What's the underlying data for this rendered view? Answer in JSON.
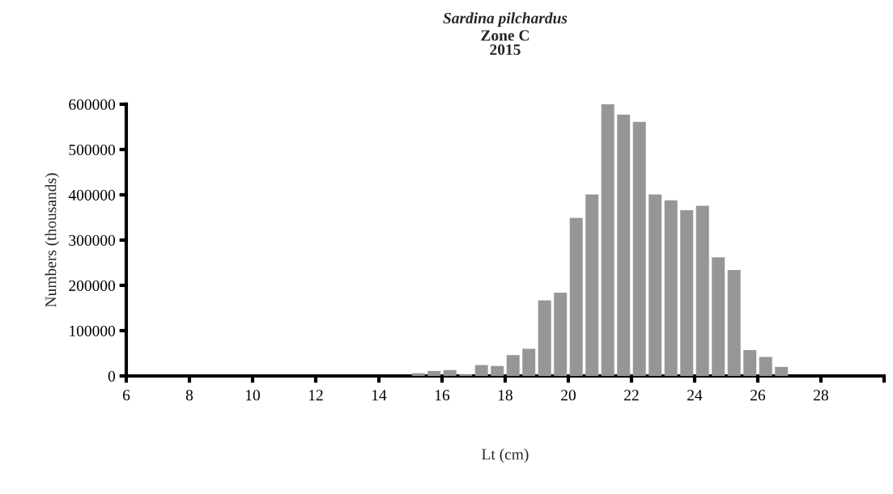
{
  "chart_data": {
    "type": "histogram",
    "title": "Sardina pilchardus",
    "subtitle": "Zone C\n2015",
    "xlabel": "Lt (cm)",
    "ylabel": "Numbers (thousands)",
    "color": "#969696",
    "bins": [
      6,
      6.5,
      7,
      7.5,
      8,
      8.5,
      9,
      9.5,
      10,
      10.5,
      11,
      11.5,
      12,
      12.5,
      13,
      13.5,
      14,
      14.5,
      15,
      15.5,
      16,
      16.5,
      17,
      17.5,
      18,
      18.5,
      19,
      19.5,
      20,
      20.5,
      21,
      21.5,
      22,
      22.5,
      23,
      23.5,
      24,
      24.5,
      25,
      25.5,
      26,
      26.5,
      27,
      27.5,
      28,
      28.5,
      29,
      29.5,
      30
    ],
    "values": [
      0,
      0,
      0,
      0,
      0,
      0,
      0,
      0,
      0,
      0,
      0,
      0,
      0,
      0,
      0,
      0,
      0,
      0,
      6000,
      11000,
      13000,
      4000,
      24000,
      22000,
      46000,
      60000,
      167000,
      184000,
      349000,
      401000,
      600000,
      577000,
      561000,
      401000,
      388000,
      366000,
      376000,
      262000,
      234000,
      57000,
      42000,
      20000,
      0,
      0,
      0,
      0,
      0,
      0
    ],
    "xlim": [
      6,
      30
    ],
    "xticks": [
      6,
      8,
      10,
      12,
      14,
      16,
      18,
      20,
      22,
      24,
      26,
      28,
      {
        "value": 30,
        "label": null
      }
    ],
    "ylim": [
      0,
      600000
    ],
    "yticks": [
      0,
      100000,
      200000,
      300000,
      400000,
      500000,
      600000
    ],
    "grid": false
  }
}
